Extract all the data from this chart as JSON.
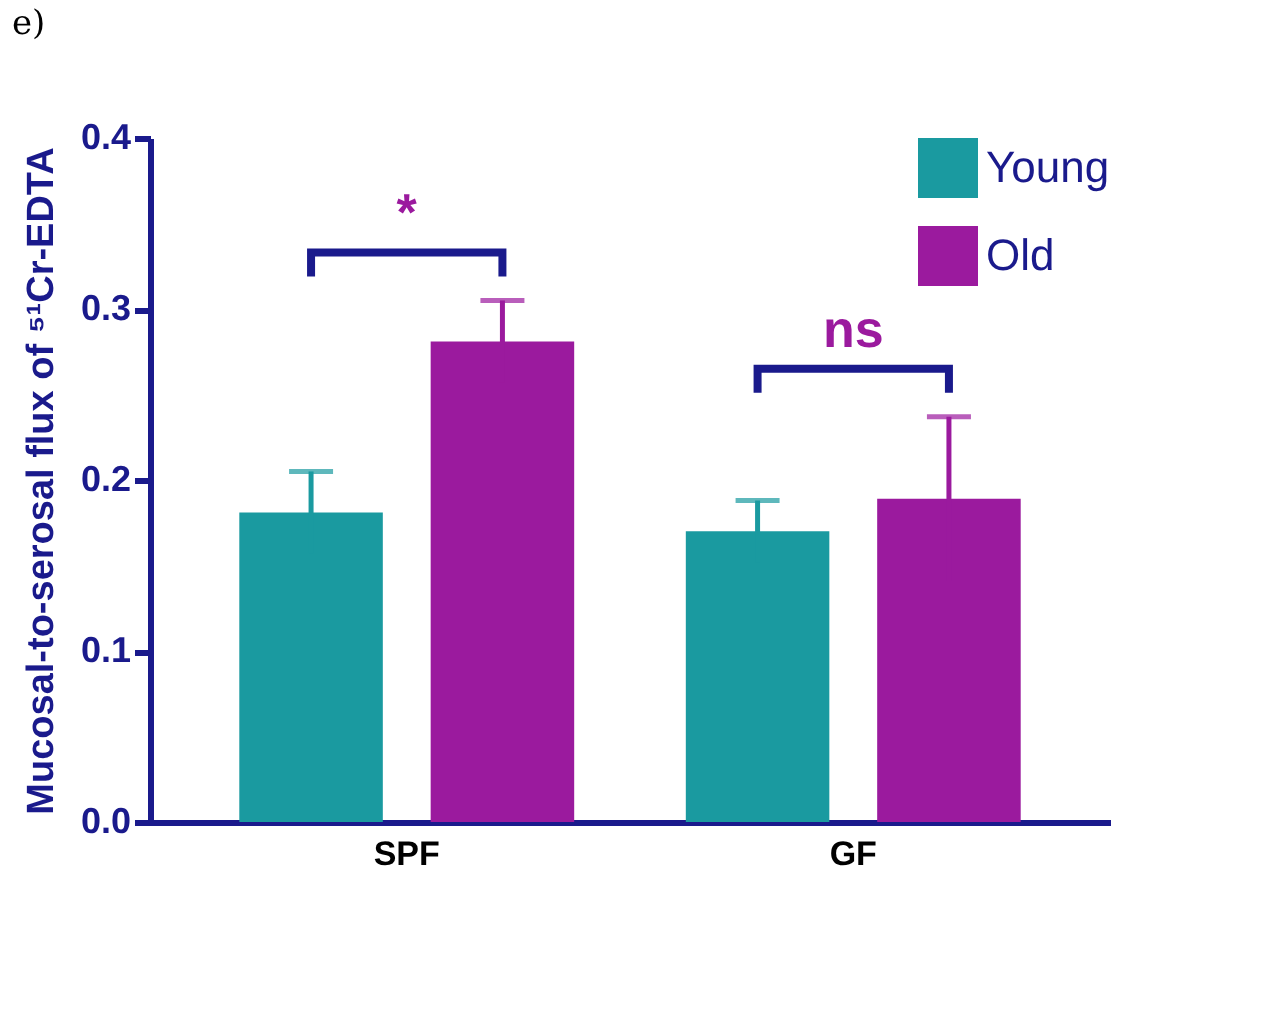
{
  "chart_data": {
    "type": "bar",
    "ylabel": "Mucosal-to-serosal flux of ⁵¹Cr-EDTA",
    "categories": [
      "SPF",
      "GF"
    ],
    "series": [
      {
        "name": "Young",
        "color": "#1a9aa0",
        "values": [
          0.181,
          0.17
        ],
        "errors": [
          0.024,
          0.018
        ]
      },
      {
        "name": "Old",
        "color": "#9b1a9e",
        "values": [
          0.281,
          0.189
        ],
        "errors": [
          0.024,
          0.048
        ]
      }
    ],
    "ylim": [
      0,
      0.4
    ],
    "yticks": [
      {
        "value": 0,
        "label": "0.0"
      },
      0.1,
      0.2,
      0.3,
      0.4
    ],
    "grid": false,
    "legend": "top right",
    "annotations": [
      "e)",
      "*",
      "ns"
    ]
  }
}
